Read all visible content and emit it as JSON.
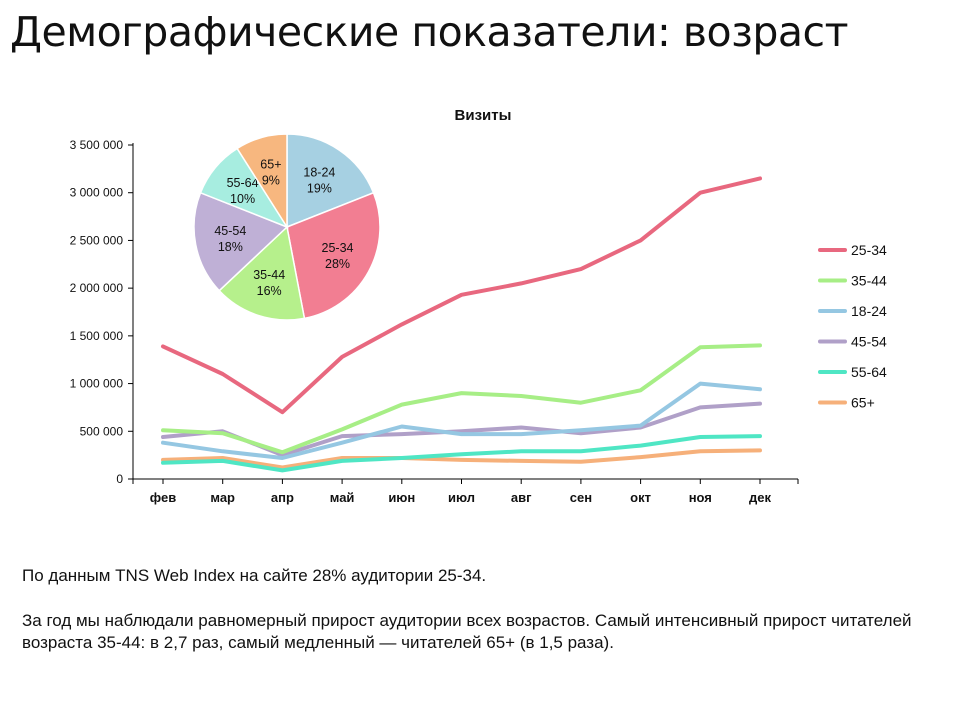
{
  "page": {
    "title": "Демографические показатели: возраст",
    "paragraph_1": "По данным TNS Web Index на сайте 28% аудитории 25-34.",
    "paragraph_2": "За год мы наблюдали равномерный прирост аудитории всех возрастов. Самый интенсивный прирост читателей возраста 35-44: в 2,7 раз, самый медленный — читателей 65+ (в 1,5 раза)."
  },
  "chart_data": [
    {
      "type": "line",
      "title": "Визиты",
      "xlabel": "",
      "ylabel": "",
      "categories": [
        "фев",
        "мар",
        "апр",
        "май",
        "июн",
        "июл",
        "авг",
        "сен",
        "окт",
        "ноя",
        "дек"
      ],
      "ylim": [
        0,
        3500000
      ],
      "yticks": [
        0,
        500000,
        1000000,
        1500000,
        2000000,
        2500000,
        3000000,
        3500000
      ],
      "ytick_labels": [
        "0",
        "500 000",
        "1 000 000",
        "1 500 000",
        "2 000 000",
        "2 500 000",
        "3 000 000",
        "3 500 000"
      ],
      "grid": false,
      "legend": "right",
      "series": [
        {
          "name": "25-34",
          "color": "#e8687f",
          "values": [
            1390000,
            1100000,
            700000,
            1280000,
            1620000,
            1930000,
            2050000,
            2200000,
            2500000,
            3000000,
            3150000
          ]
        },
        {
          "name": "35-44",
          "color": "#a7ee86",
          "values": [
            510000,
            480000,
            280000,
            520000,
            780000,
            900000,
            870000,
            800000,
            930000,
            1380000,
            1400000
          ]
        },
        {
          "name": "18-24",
          "color": "#95c7e2",
          "values": [
            380000,
            290000,
            220000,
            380000,
            550000,
            470000,
            470000,
            510000,
            560000,
            1000000,
            940000
          ]
        },
        {
          "name": "45-54",
          "color": "#b0a0c8",
          "values": [
            440000,
            500000,
            250000,
            450000,
            470000,
            500000,
            540000,
            480000,
            540000,
            750000,
            790000
          ]
        },
        {
          "name": "55-64",
          "color": "#4fe6c4",
          "values": [
            170000,
            190000,
            90000,
            190000,
            220000,
            260000,
            290000,
            290000,
            350000,
            440000,
            450000
          ]
        },
        {
          "name": "65+",
          "color": "#f6b07a",
          "values": [
            200000,
            220000,
            120000,
            220000,
            220000,
            200000,
            190000,
            180000,
            230000,
            290000,
            300000
          ]
        }
      ]
    },
    {
      "type": "pie",
      "title": "",
      "slices": [
        {
          "label": "18-24",
          "value": 19,
          "display": "19%",
          "color": "#a6d0e2"
        },
        {
          "label": "25-34",
          "value": 28,
          "display": "28%",
          "color": "#f27e92"
        },
        {
          "label": "35-44",
          "value": 16,
          "display": "16%",
          "color": "#b6f08c"
        },
        {
          "label": "45-54",
          "value": 18,
          "display": "18%",
          "color": "#bfb0d6"
        },
        {
          "label": "55-64",
          "value": 10,
          "display": "10%",
          "color": "#a7ede0"
        },
        {
          "label": "65+",
          "value": 9,
          "display": "9%",
          "color": "#f7b77f"
        }
      ],
      "start_angle": "top",
      "direction": "clockwise"
    }
  ]
}
